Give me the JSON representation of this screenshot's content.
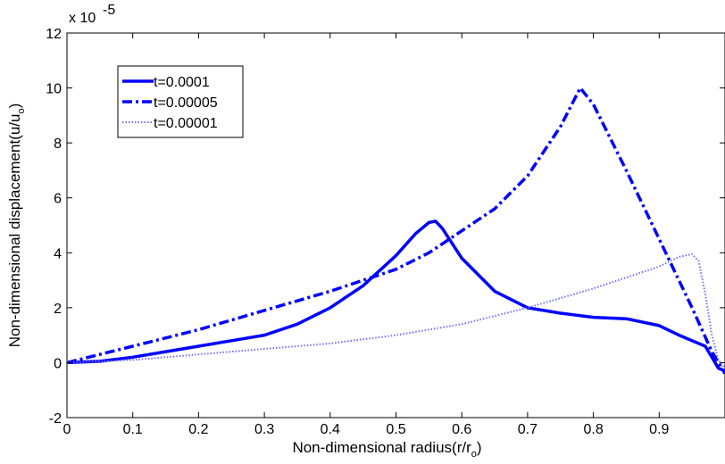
{
  "chart_data": {
    "type": "line",
    "xlabel": "Non-dimensional radius(r/r",
    "xlabel_sub": "o",
    "xlabel_close": ")",
    "ylabel": "Non-dimensional displacement(u/u",
    "ylabel_sub": "o",
    "ylabel_close": ")",
    "y_multiplier": "x 10",
    "y_multiplier_exp": "-5",
    "xlim": [
      0,
      1
    ],
    "ylim": [
      -2,
      12
    ],
    "x_ticks": [
      0,
      0.1,
      0.2,
      0.3,
      0.4,
      0.5,
      0.6,
      0.7,
      0.8,
      0.9
    ],
    "x_tick_labels": [
      "0",
      "0.1",
      "0.2",
      "0.3",
      "0.4",
      "0.5",
      "0.6",
      "0.7",
      "0.8",
      "0.9"
    ],
    "y_ticks": [
      -2,
      0,
      2,
      4,
      6,
      8,
      10,
      12
    ],
    "y_tick_labels": [
      "-2",
      "0",
      "2",
      "4",
      "6",
      "8",
      "10",
      "12"
    ],
    "grid": false,
    "legend_position": "top-left",
    "series": [
      {
        "name": "t=0.0001",
        "style": "solid",
        "color": "#0000ff",
        "x": [
          0,
          0.05,
          0.1,
          0.15,
          0.2,
          0.25,
          0.3,
          0.35,
          0.4,
          0.45,
          0.5,
          0.53,
          0.55,
          0.56,
          0.57,
          0.6,
          0.65,
          0.7,
          0.75,
          0.8,
          0.85,
          0.9,
          0.93,
          0.95,
          0.97,
          0.98,
          0.99,
          1.0
        ],
        "y": [
          0,
          0.05,
          0.2,
          0.4,
          0.6,
          0.8,
          1.0,
          1.4,
          2.0,
          2.8,
          3.9,
          4.7,
          5.1,
          5.15,
          4.9,
          3.8,
          2.6,
          2.0,
          1.8,
          1.65,
          1.6,
          1.35,
          1.0,
          0.8,
          0.6,
          0.2,
          -0.2,
          -0.3
        ]
      },
      {
        "name": "t=0.00005",
        "style": "dashdot",
        "color": "#0000ff",
        "x": [
          0,
          0.05,
          0.1,
          0.2,
          0.3,
          0.4,
          0.5,
          0.55,
          0.6,
          0.65,
          0.7,
          0.75,
          0.78,
          0.8,
          0.85,
          0.9,
          0.95,
          0.98,
          1.0
        ],
        "y": [
          0,
          0.3,
          0.6,
          1.2,
          1.9,
          2.6,
          3.4,
          4.0,
          4.8,
          5.6,
          6.8,
          8.6,
          10.0,
          9.4,
          7.0,
          4.5,
          2.0,
          0.4,
          -0.4
        ]
      },
      {
        "name": "t=0.00001",
        "style": "dotted",
        "color": "#6f6fff",
        "x": [
          0,
          0.1,
          0.2,
          0.3,
          0.4,
          0.5,
          0.6,
          0.7,
          0.8,
          0.9,
          0.93,
          0.95,
          0.96,
          0.97,
          0.98,
          0.99,
          1.0
        ],
        "y": [
          0,
          0.1,
          0.3,
          0.5,
          0.7,
          1.0,
          1.4,
          2.0,
          2.7,
          3.5,
          3.85,
          3.95,
          3.7,
          2.5,
          1.0,
          0.1,
          -0.2
        ]
      }
    ]
  }
}
